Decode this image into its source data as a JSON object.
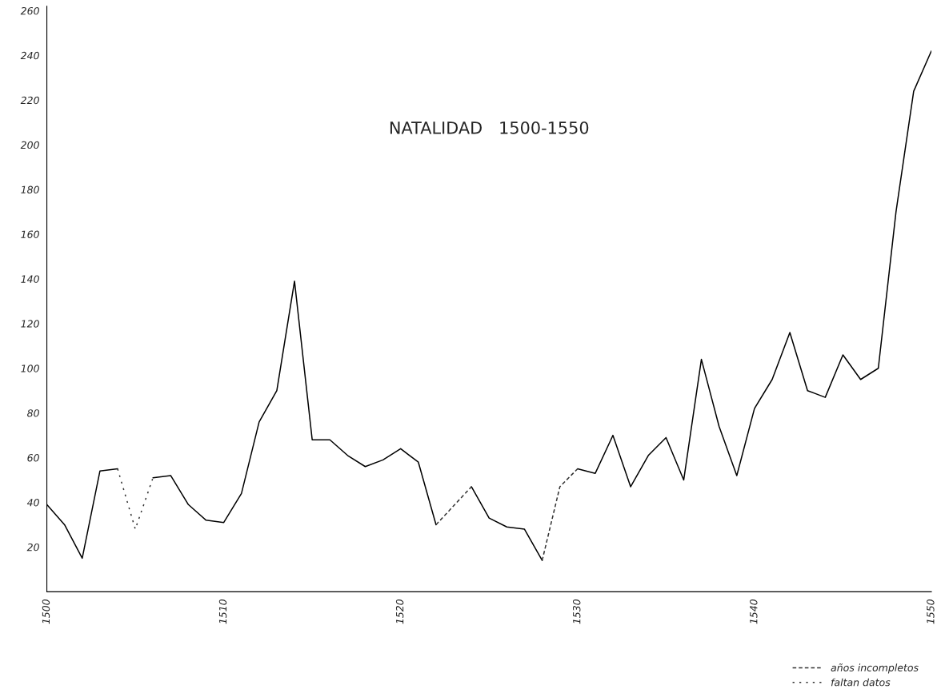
{
  "chart_data": {
    "type": "line",
    "title": "NATALIDAD   1500-1550",
    "xlim": [
      1500,
      1550
    ],
    "xticks": [
      1500,
      1510,
      1520,
      1530,
      1540,
      1550
    ],
    "ylim": [
      0,
      262
    ],
    "yticks": [
      20,
      40,
      60,
      80,
      100,
      120,
      140,
      160,
      180,
      200,
      220,
      240,
      260
    ],
    "grid": false,
    "legend": "bottom right",
    "marker": "none",
    "series": [
      {
        "color": "#000000",
        "line_style": "solid",
        "x": [
          1500,
          1501,
          1502,
          1503,
          1504,
          1505,
          1506,
          1507,
          1508,
          1509,
          1510,
          1511,
          1512,
          1513,
          1514,
          1515,
          1516,
          1517,
          1518,
          1519,
          1520,
          1521,
          1522,
          1523,
          1524,
          1525,
          1526,
          1527,
          1528,
          1529,
          1530,
          1531,
          1532,
          1533,
          1534,
          1535,
          1536,
          1537,
          1538,
          1539,
          1540,
          1541,
          1542,
          1543,
          1544,
          1545,
          1546,
          1547,
          1548,
          1549,
          1550
        ],
        "values": [
          39,
          30,
          15,
          54,
          55,
          null,
          51,
          52,
          39,
          32,
          31,
          44,
          76,
          90,
          139,
          68,
          68,
          61,
          56,
          59,
          64,
          58,
          30,
          null,
          47,
          33,
          29,
          28,
          14,
          null,
          55,
          53,
          70,
          47,
          61,
          69,
          50,
          104,
          74,
          52,
          82,
          95,
          116,
          90,
          87,
          106,
          95,
          100,
          170,
          224,
          242
        ]
      },
      {
        "name": "años incompletos",
        "color": "#333333",
        "line_style": "dashed",
        "x": [
          1522,
          1524,
          1525,
          1528,
          1529,
          1530
        ],
        "values": [
          30,
          47,
          null,
          14,
          47,
          55
        ]
      },
      {
        "name": "faltan datos",
        "color": "#333333",
        "line_style": "dotted",
        "x": [
          1504,
          1505,
          1506
        ],
        "values": [
          55,
          28,
          51
        ]
      }
    ]
  }
}
